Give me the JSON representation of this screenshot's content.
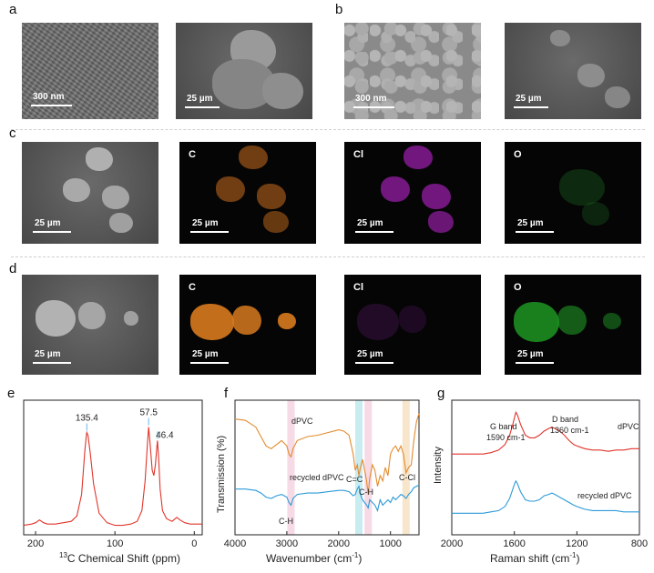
{
  "panel_labels": {
    "a": "a",
    "b": "b",
    "c": "c",
    "d": "d",
    "e": "e",
    "f": "f",
    "g": "g"
  },
  "scale_bars": {
    "nm300": "300 nm",
    "um25": "25 µm"
  },
  "elements": {
    "c": "C",
    "cl": "Cl",
    "o": "O"
  },
  "colors": {
    "carbon": "#d87a1e",
    "chlorine": "#9a1aa8",
    "oxygen": "#1e8a22",
    "red": "#e0352b",
    "orange": "#e38b2d",
    "blue": "#2d9ad8"
  },
  "chart_data": [
    {
      "panel": "e",
      "type": "line",
      "xlabel": "13C Chemical Shift (ppm)",
      "xlabel_sup": "13",
      "xlabel_rest": "C Chemical Shift (ppm)",
      "xticks": [
        200,
        100,
        0
      ],
      "xlim": [
        215,
        -10
      ],
      "annotations": [
        "135.4",
        "57.5",
        "46.4"
      ],
      "series": [
        {
          "color": "#e0352b",
          "x": [
            215,
            205,
            200,
            195,
            190,
            185,
            175,
            165,
            155,
            148,
            142,
            138,
            136,
            135.4,
            134,
            131,
            127,
            120,
            110,
            100,
            90,
            80,
            72,
            66,
            62,
            59,
            57.5,
            56,
            53,
            51,
            49,
            47,
            46.4,
            45,
            43,
            40,
            35,
            28,
            22,
            18,
            12,
            5,
            0,
            -5,
            -10
          ],
          "y": [
            0.07,
            0.08,
            0.09,
            0.11,
            0.09,
            0.08,
            0.08,
            0.09,
            0.1,
            0.14,
            0.3,
            0.62,
            0.74,
            0.76,
            0.74,
            0.6,
            0.38,
            0.16,
            0.09,
            0.07,
            0.07,
            0.08,
            0.1,
            0.18,
            0.4,
            0.68,
            0.8,
            0.7,
            0.48,
            0.44,
            0.52,
            0.66,
            0.7,
            0.58,
            0.34,
            0.18,
            0.12,
            0.1,
            0.13,
            0.11,
            0.09,
            0.08,
            0.08,
            0.08,
            0.08
          ]
        }
      ]
    },
    {
      "panel": "f",
      "type": "line",
      "xlabel": "Wavenumber (cm-1)",
      "xlabel_main": "Wavenumber (cm",
      "xlabel_sup": "-1",
      "xlabel_end": ")",
      "ylabel": "Transmission (%)",
      "xticks": [
        4000,
        3000,
        2000,
        1000
      ],
      "xlim": [
        4000,
        450
      ],
      "annotations": [
        "dPVC",
        "recycled dPVC",
        "C=C",
        "C-H",
        "C-Cl",
        "C-H"
      ],
      "bands": [
        {
          "x": 2920,
          "color": "#f5d4e0"
        },
        {
          "x": 1610,
          "color": "#bfe9ef"
        },
        {
          "x": 1430,
          "color": "#f5d4e0"
        },
        {
          "x": 700,
          "color": "#f6e2c2"
        }
      ],
      "series": [
        {
          "name": "dPVC",
          "color": "#e38b2d",
          "x": [
            4000,
            3800,
            3600,
            3500,
            3400,
            3300,
            3200,
            3100,
            3000,
            2960,
            2920,
            2880,
            2800,
            2600,
            2400,
            2200,
            2000,
            1900,
            1800,
            1720,
            1680,
            1640,
            1610,
            1580,
            1540,
            1500,
            1460,
            1430,
            1400,
            1350,
            1300,
            1250,
            1200,
            1150,
            1100,
            1050,
            1000,
            950,
            900,
            850,
            800,
            750,
            700,
            650,
            600,
            550,
            500,
            450
          ],
          "y": [
            0.86,
            0.85,
            0.8,
            0.73,
            0.66,
            0.64,
            0.67,
            0.7,
            0.66,
            0.6,
            0.58,
            0.64,
            0.7,
            0.73,
            0.74,
            0.76,
            0.78,
            0.77,
            0.74,
            0.6,
            0.48,
            0.52,
            0.44,
            0.5,
            0.56,
            0.48,
            0.4,
            0.3,
            0.42,
            0.52,
            0.48,
            0.36,
            0.44,
            0.4,
            0.5,
            0.44,
            0.6,
            0.64,
            0.66,
            0.62,
            0.66,
            0.6,
            0.46,
            0.5,
            0.52,
            0.7,
            0.84,
            0.9
          ]
        },
        {
          "name": "recycled dPVC",
          "color": "#2d9ad8",
          "x": [
            4000,
            3800,
            3600,
            3500,
            3400,
            3300,
            3200,
            3100,
            3000,
            2960,
            2920,
            2880,
            2800,
            2600,
            2400,
            2200,
            2000,
            1900,
            1800,
            1720,
            1680,
            1640,
            1610,
            1580,
            1540,
            1500,
            1460,
            1430,
            1400,
            1350,
            1300,
            1250,
            1200,
            1150,
            1100,
            1050,
            1000,
            950,
            900,
            850,
            800,
            750,
            700,
            650,
            600,
            550,
            500,
            450
          ],
          "y": [
            0.34,
            0.34,
            0.33,
            0.31,
            0.28,
            0.27,
            0.29,
            0.3,
            0.28,
            0.24,
            0.22,
            0.27,
            0.3,
            0.31,
            0.31,
            0.32,
            0.33,
            0.33,
            0.32,
            0.29,
            0.3,
            0.34,
            0.36,
            0.3,
            0.26,
            0.24,
            0.22,
            0.2,
            0.26,
            0.24,
            0.22,
            0.18,
            0.26,
            0.22,
            0.24,
            0.26,
            0.24,
            0.28,
            0.26,
            0.28,
            0.3,
            0.29,
            0.27,
            0.3,
            0.32,
            0.35,
            0.36,
            0.37
          ]
        }
      ]
    },
    {
      "panel": "g",
      "type": "line",
      "xlabel": "Raman shift (cm-1)",
      "xlabel_main": "Raman shift (cm",
      "xlabel_sup": "-1",
      "xlabel_end": ")",
      "ylabel": "Intensity",
      "xticks": [
        2000,
        1600,
        1200,
        800
      ],
      "xlim": [
        2000,
        800
      ],
      "annotations": [
        "G band",
        "1590 cm-1",
        "D band",
        "1360 cm-1",
        "dPVC",
        "recycled dPVC"
      ],
      "series": [
        {
          "name": "dPVC",
          "color": "#e0352b",
          "x": [
            2000,
            1900,
            1800,
            1750,
            1700,
            1660,
            1630,
            1610,
            1595,
            1590,
            1580,
            1560,
            1530,
            1500,
            1470,
            1440,
            1410,
            1380,
            1360,
            1340,
            1310,
            1280,
            1250,
            1220,
            1200,
            1150,
            1100,
            1050,
            1000,
            950,
            900,
            850,
            800
          ],
          "y": [
            0.6,
            0.6,
            0.6,
            0.61,
            0.63,
            0.67,
            0.74,
            0.82,
            0.89,
            0.91,
            0.89,
            0.82,
            0.74,
            0.72,
            0.72,
            0.74,
            0.77,
            0.79,
            0.8,
            0.79,
            0.77,
            0.74,
            0.7,
            0.67,
            0.66,
            0.64,
            0.63,
            0.63,
            0.62,
            0.63,
            0.63,
            0.64,
            0.64
          ]
        },
        {
          "name": "recycled dPVC",
          "color": "#2d9ad8",
          "x": [
            2000,
            1900,
            1800,
            1750,
            1700,
            1660,
            1630,
            1610,
            1595,
            1590,
            1580,
            1560,
            1530,
            1500,
            1470,
            1440,
            1410,
            1380,
            1360,
            1340,
            1310,
            1280,
            1250,
            1220,
            1200,
            1150,
            1100,
            1050,
            1000,
            950,
            900,
            850,
            800
          ],
          "y": [
            0.16,
            0.16,
            0.16,
            0.17,
            0.18,
            0.21,
            0.27,
            0.34,
            0.39,
            0.4,
            0.38,
            0.32,
            0.26,
            0.25,
            0.25,
            0.26,
            0.29,
            0.3,
            0.31,
            0.3,
            0.28,
            0.26,
            0.24,
            0.22,
            0.21,
            0.19,
            0.18,
            0.18,
            0.18,
            0.18,
            0.17,
            0.17,
            0.17
          ]
        }
      ]
    }
  ]
}
